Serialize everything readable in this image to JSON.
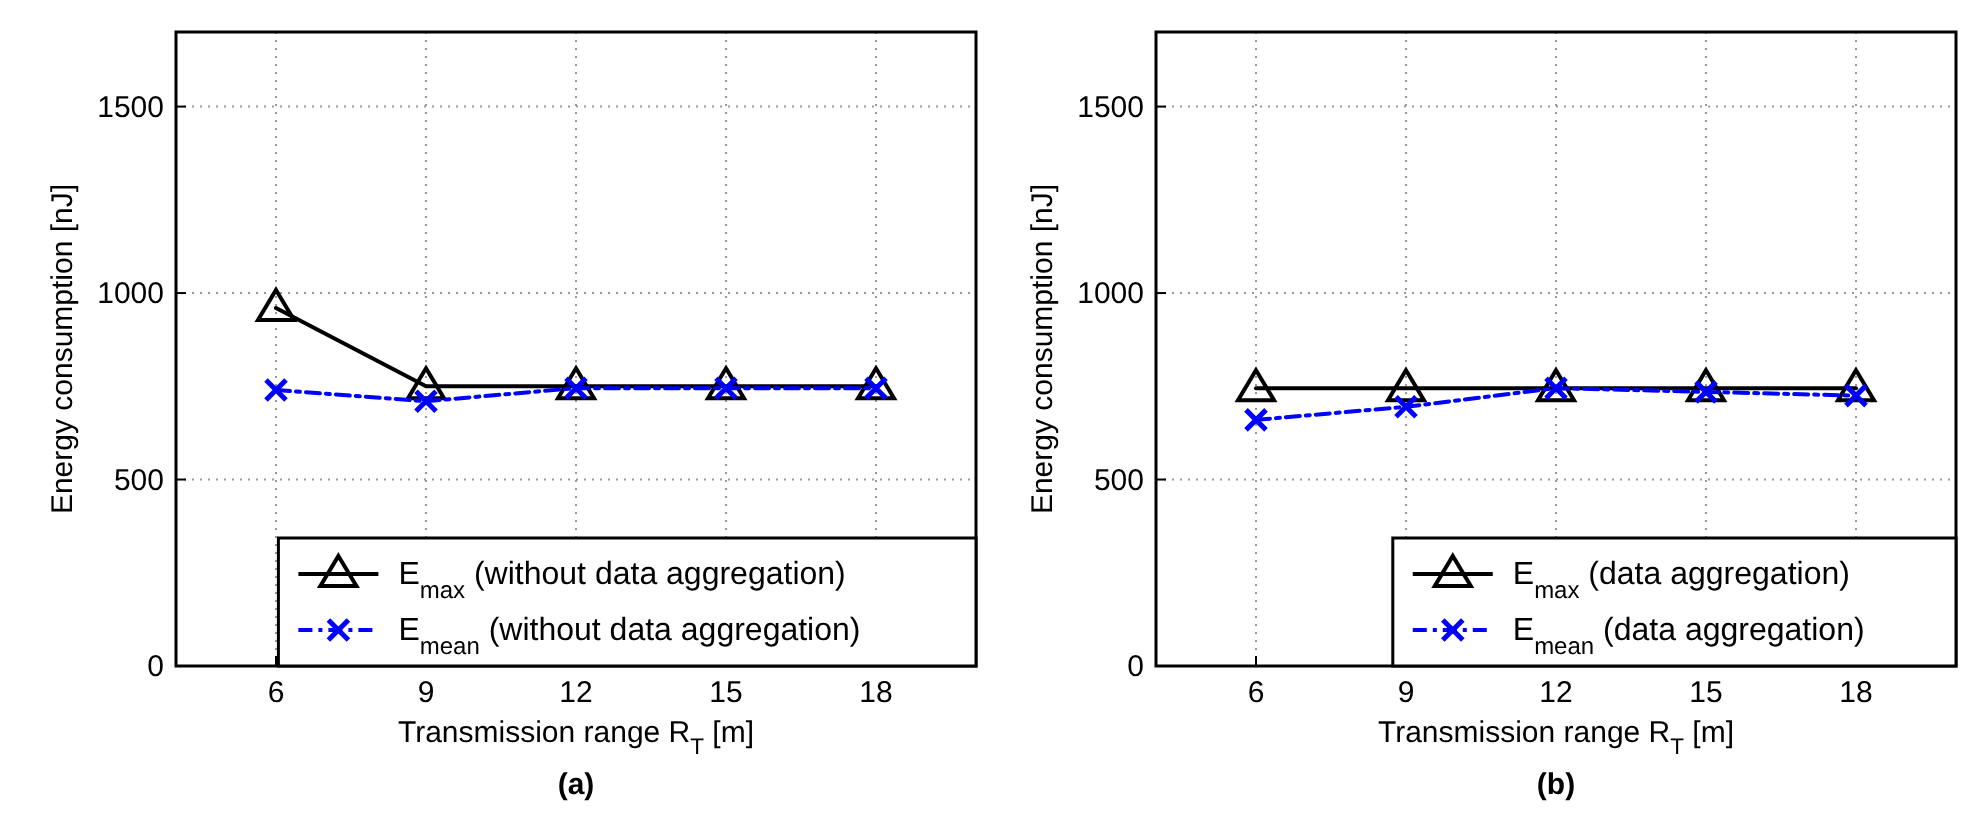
{
  "chart_data": [
    {
      "type": "line",
      "title": "(a)",
      "xlabel": "Transmission range R$_{T}$ [m]",
      "ylabel": "Energy consumption [nJ]",
      "x": [
        6,
        9,
        12,
        15,
        18
      ],
      "xlim": [
        4,
        20
      ],
      "xticks": [
        6,
        9,
        12,
        15,
        18
      ],
      "ylim": [
        0,
        1700
      ],
      "yticks": [
        0,
        500,
        1000,
        1500
      ],
      "grid": true,
      "legend": "bottom right",
      "series": [
        {
          "name": "E$_{max}$ (without data aggregation)",
          "color": "#000000",
          "values": [
            960,
            750,
            750,
            750,
            750
          ],
          "marker": "triangle",
          "line_style": "solid"
        },
        {
          "name": "E$_{mean}$ (without data aggregation)",
          "color": "#0000ff",
          "values": [
            740,
            710,
            745,
            745,
            745
          ],
          "marker": "cross",
          "line_style": "dashdot"
        }
      ]
    },
    {
      "type": "line",
      "title": "(b)",
      "xlabel": "Transmission range R$_{T}$ [m]",
      "ylabel": "Energy consumption [nJ]",
      "x": [
        6,
        9,
        12,
        15,
        18
      ],
      "xlim": [
        4,
        20
      ],
      "xticks": [
        6,
        9,
        12,
        15,
        18
      ],
      "ylim": [
        0,
        1700
      ],
      "yticks": [
        0,
        500,
        1000,
        1500
      ],
      "grid": true,
      "legend": "bottom right",
      "series": [
        {
          "name": "E$_{max}$ (data aggregation)",
          "color": "#000000",
          "values": [
            745,
            745,
            745,
            745,
            745
          ],
          "marker": "triangle",
          "line_style": "solid"
        },
        {
          "name": "E$_{mean}$ (data aggregation)",
          "color": "#0000ff",
          "values": [
            660,
            695,
            745,
            735,
            725
          ],
          "marker": "cross",
          "line_style": "dashdot"
        }
      ]
    }
  ]
}
